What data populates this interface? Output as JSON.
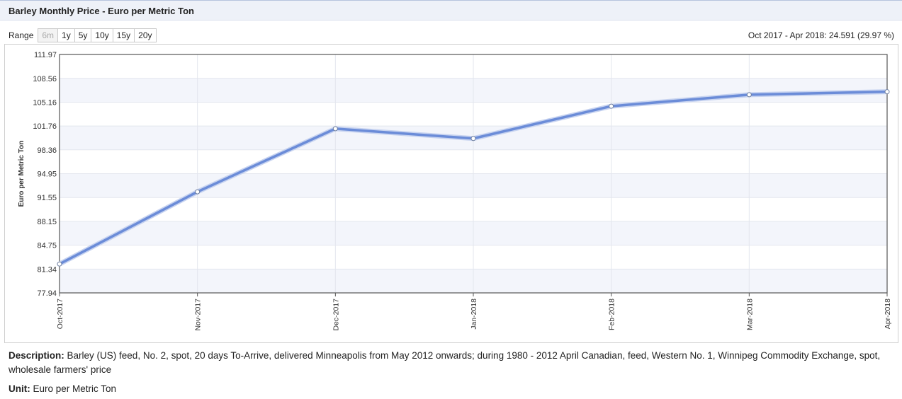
{
  "header": {
    "title": "Barley Monthly Price - Euro per Metric Ton"
  },
  "range": {
    "label": "Range",
    "buttons": [
      "6m",
      "1y",
      "5y",
      "10y",
      "15y",
      "20y"
    ]
  },
  "change_summary": "Oct 2017 - Apr 2018: 24.591 (29.97 %)",
  "chart_data": {
    "type": "line",
    "ylabel": "Euro per Metric Ton",
    "xlabel": "",
    "categories": [
      "Oct-2017",
      "Nov-2017",
      "Dec-2017",
      "Jan-2018",
      "Feb-2018",
      "Mar-2018",
      "Apr-2018"
    ],
    "series": [
      {
        "values": [
          82.06,
          92.37,
          101.38,
          99.98,
          104.59,
          106.23,
          106.65
        ]
      }
    ],
    "yticks": [
      "77.94",
      "81.34",
      "84.75",
      "88.15",
      "91.55",
      "94.95",
      "98.36",
      "101.76",
      "105.16",
      "108.56",
      "111.97"
    ],
    "ylim": [
      77.94,
      111.97
    ],
    "line_color": "#6b8cd8",
    "grid": true
  },
  "description": {
    "label": "Description:",
    "text": "Barley (US) feed, No. 2, spot, 20 days To-Arrive, delivered Minneapolis from May 2012 onwards; during 1980 - 2012 April Canadian, feed, Western No. 1, Winnipeg Commodity Exchange, spot, wholesale farmers' price"
  },
  "unit": {
    "label": "Unit:",
    "text": "Euro per Metric Ton"
  }
}
